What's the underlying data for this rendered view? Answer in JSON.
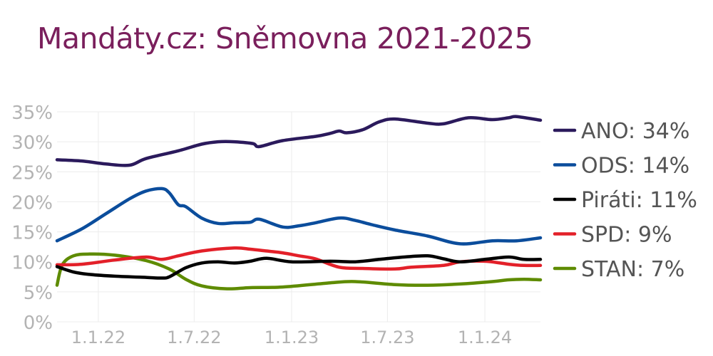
{
  "chart_data": {
    "type": "line",
    "title": "Mandáty.cz: Sněmovna 2021-2025",
    "xlabel": "",
    "ylabel": "",
    "x_range": [
      "2021-10-15",
      "2024-04-15"
    ],
    "ylim": [
      0,
      35
    ],
    "y_ticks": [
      0,
      5,
      10,
      15,
      20,
      25,
      30,
      35
    ],
    "y_tick_labels": [
      "0%",
      "5%",
      "10%",
      "15%",
      "20%",
      "25%",
      "30%",
      "35%"
    ],
    "x_ticks": [
      "2022-01-01",
      "2022-07-01",
      "2023-01-01",
      "2023-07-01",
      "2024-01-01"
    ],
    "x_tick_labels": [
      "1.1.22",
      "1.7.22",
      "1.1.23",
      "1.7.23",
      "1.1.24"
    ],
    "legend": "right",
    "grid": true,
    "series": [
      {
        "name": "ANO",
        "label": "ANO: 34%",
        "color": "#2b1a5c",
        "points": [
          [
            "2021-10-15",
            27
          ],
          [
            "2021-12-01",
            26.8
          ],
          [
            "2022-01-15",
            26.3
          ],
          [
            "2022-03-01",
            26.1
          ],
          [
            "2022-04-01",
            27.2
          ],
          [
            "2022-06-01",
            28.5
          ],
          [
            "2022-07-15",
            29.6
          ],
          [
            "2022-08-15",
            30
          ],
          [
            "2022-09-15",
            30
          ],
          [
            "2022-10-20",
            29.7
          ],
          [
            "2022-11-01",
            29.2
          ],
          [
            "2022-12-15",
            30.2
          ],
          [
            "2023-02-15",
            30.9
          ],
          [
            "2023-03-15",
            31.4
          ],
          [
            "2023-04-01",
            31.8
          ],
          [
            "2023-04-15",
            31.5
          ],
          [
            "2023-05-15",
            32
          ],
          [
            "2023-06-15",
            33.3
          ],
          [
            "2023-07-15",
            33.8
          ],
          [
            "2023-09-15",
            33.1
          ],
          [
            "2023-10-15",
            33
          ],
          [
            "2023-12-01",
            34
          ],
          [
            "2024-01-15",
            33.7
          ],
          [
            "2024-02-15",
            34
          ],
          [
            "2024-03-01",
            34.2
          ],
          [
            "2024-04-15",
            33.6
          ]
        ]
      },
      {
        "name": "ODS",
        "label": "ODS: 14%",
        "color": "#0b4d9c",
        "points": [
          [
            "2021-10-15",
            13.5
          ],
          [
            "2021-12-01",
            15.5
          ],
          [
            "2022-01-15",
            18
          ],
          [
            "2022-03-01",
            20.5
          ],
          [
            "2022-04-01",
            21.8
          ],
          [
            "2022-05-01",
            22.2
          ],
          [
            "2022-05-15",
            21.5
          ],
          [
            "2022-06-01",
            19.5
          ],
          [
            "2022-06-15",
            19.2
          ],
          [
            "2022-07-15",
            17.3
          ],
          [
            "2022-08-15",
            16.4
          ],
          [
            "2022-09-15",
            16.5
          ],
          [
            "2022-10-15",
            16.6
          ],
          [
            "2022-11-01",
            17.1
          ],
          [
            "2022-12-15",
            15.8
          ],
          [
            "2023-01-15",
            16
          ],
          [
            "2023-02-15",
            16.5
          ],
          [
            "2023-04-01",
            17.3
          ],
          [
            "2023-05-01",
            16.9
          ],
          [
            "2023-06-01",
            16.2
          ],
          [
            "2023-07-15",
            15.3
          ],
          [
            "2023-09-15",
            14.3
          ],
          [
            "2023-11-15",
            13
          ],
          [
            "2024-01-15",
            13.5
          ],
          [
            "2024-03-01",
            13.5
          ],
          [
            "2024-04-15",
            14
          ]
        ]
      },
      {
        "name": "Piráti",
        "label": "Piráti: 11%",
        "color": "#000000",
        "points": [
          [
            "2021-10-15",
            9.2
          ],
          [
            "2021-11-15",
            8.3
          ],
          [
            "2021-12-15",
            7.9
          ],
          [
            "2022-02-01",
            7.6
          ],
          [
            "2022-04-01",
            7.4
          ],
          [
            "2022-05-01",
            7.3
          ],
          [
            "2022-05-15",
            7.5
          ],
          [
            "2022-06-15",
            9
          ],
          [
            "2022-07-15",
            9.8
          ],
          [
            "2022-08-15",
            10
          ],
          [
            "2022-09-15",
            9.8
          ],
          [
            "2022-10-15",
            10.1
          ],
          [
            "2022-11-15",
            10.6
          ],
          [
            "2023-01-01",
            10
          ],
          [
            "2023-03-15",
            10.1
          ],
          [
            "2023-05-01",
            10
          ],
          [
            "2023-06-15",
            10.4
          ],
          [
            "2023-08-01",
            10.8
          ],
          [
            "2023-09-15",
            11
          ],
          [
            "2023-10-15",
            10.5
          ],
          [
            "2023-11-15",
            10
          ],
          [
            "2024-01-01",
            10.4
          ],
          [
            "2024-02-15",
            10.8
          ],
          [
            "2024-03-15",
            10.4
          ],
          [
            "2024-04-15",
            10.4
          ]
        ]
      },
      {
        "name": "SPD",
        "label": "SPD: 9%",
        "color": "#e32029",
        "points": [
          [
            "2021-10-15",
            9.5
          ],
          [
            "2021-12-01",
            9.6
          ],
          [
            "2022-02-01",
            10.3
          ],
          [
            "2022-04-01",
            10.8
          ],
          [
            "2022-05-01",
            10.4
          ],
          [
            "2022-06-01",
            11
          ],
          [
            "2022-07-15",
            11.8
          ],
          [
            "2022-09-15",
            12.3
          ],
          [
            "2022-10-15",
            12.1
          ],
          [
            "2022-11-15",
            11.8
          ],
          [
            "2022-12-15",
            11.5
          ],
          [
            "2023-01-15",
            11
          ],
          [
            "2023-02-15",
            10.5
          ],
          [
            "2023-04-01",
            9.1
          ],
          [
            "2023-05-15",
            8.9
          ],
          [
            "2023-07-15",
            8.8
          ],
          [
            "2023-08-15",
            9.1
          ],
          [
            "2023-10-15",
            9.4
          ],
          [
            "2023-11-15",
            10
          ],
          [
            "2024-01-01",
            10.1
          ],
          [
            "2024-02-15",
            9.6
          ],
          [
            "2024-03-15",
            9.4
          ],
          [
            "2024-04-15",
            9.4
          ]
        ]
      },
      {
        "name": "STAN",
        "label": "STAN: 7%",
        "color": "#5e8b00",
        "points": [
          [
            "2021-10-15",
            6.1
          ],
          [
            "2021-10-25",
            9.5
          ],
          [
            "2021-11-15",
            11
          ],
          [
            "2021-12-15",
            11.3
          ],
          [
            "2022-02-01",
            11.1
          ],
          [
            "2022-04-01",
            10.2
          ],
          [
            "2022-05-15",
            8.8
          ],
          [
            "2022-06-15",
            7.1
          ],
          [
            "2022-07-15",
            6
          ],
          [
            "2022-09-01",
            5.5
          ],
          [
            "2022-10-15",
            5.7
          ],
          [
            "2022-12-15",
            5.8
          ],
          [
            "2023-03-15",
            6.5
          ],
          [
            "2023-05-01",
            6.7
          ],
          [
            "2023-07-15",
            6.2
          ],
          [
            "2023-09-15",
            6.1
          ],
          [
            "2023-11-15",
            6.3
          ],
          [
            "2024-01-15",
            6.7
          ],
          [
            "2024-02-15",
            7
          ],
          [
            "2024-03-15",
            7.1
          ],
          [
            "2024-04-15",
            7
          ]
        ]
      }
    ]
  }
}
